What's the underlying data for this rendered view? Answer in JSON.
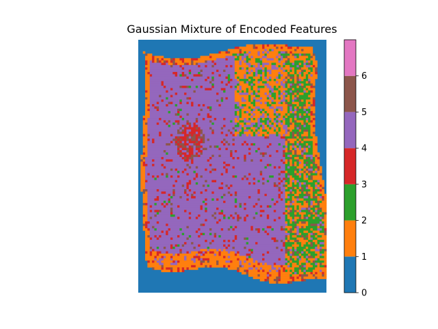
{
  "chart_data": {
    "type": "heatmap",
    "title": "Gaussian Mixture of Encoded Features",
    "xlabel": "",
    "ylabel": "",
    "axes_visible": false,
    "grid": false,
    "legend": "colorbar-right",
    "colorbar": {
      "range": [
        0,
        7
      ],
      "ticks": [
        0,
        1,
        2,
        3,
        4,
        5,
        6
      ],
      "categories": [
        {
          "cluster": 0,
          "color": "#1f77b4"
        },
        {
          "cluster": 1,
          "color": "#ff7f0e"
        },
        {
          "cluster": 2,
          "color": "#2ca02c"
        },
        {
          "cluster": 3,
          "color": "#d62728"
        },
        {
          "cluster": 4,
          "color": "#9467bd"
        },
        {
          "cluster": 5,
          "color": "#8c564b"
        },
        {
          "cluster": 6,
          "color": "#e377c2"
        }
      ]
    },
    "background_cluster": 0,
    "dominant_cluster": 4,
    "image_shape": {
      "rows": 110,
      "cols": 82
    }
  }
}
